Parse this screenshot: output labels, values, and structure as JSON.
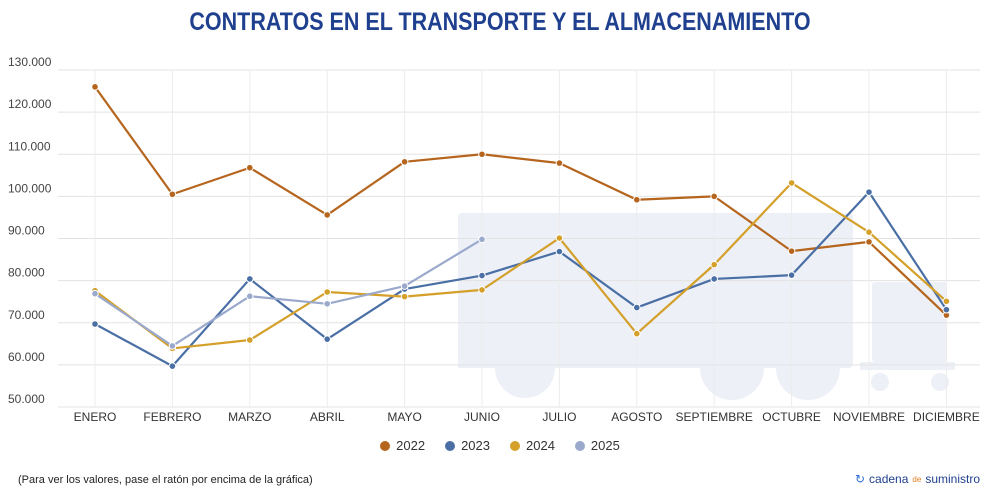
{
  "page": {
    "title": "CONTRATOS EN EL TRANSPORTE Y EL ALMACENAMIENTO",
    "footnote": "(Para ver los valores, pase el ratón por encima de la gráfica)",
    "brand": {
      "icon": "c-swirl-icon",
      "prefix": "cadena",
      "middle": "de",
      "suffix": "suministro"
    }
  },
  "chart_data": {
    "type": "line",
    "title": "CONTRATOS EN EL TRANSPORTE Y EL ALMACENAMIENTO",
    "xlabel": "",
    "ylabel": "",
    "categories": [
      "ENERO",
      "FEBRERO",
      "MARZO",
      "ABRIL",
      "MAYO",
      "JUNIO",
      "JULIO",
      "AGOSTO",
      "SEPTIEMBRE",
      "OCTUBRE",
      "NOVIEMBRE",
      "DICIEMBRE"
    ],
    "ylim": [
      50000,
      130000
    ],
    "yticks": [
      50000,
      60000,
      70000,
      80000,
      90000,
      100000,
      110000,
      120000,
      130000
    ],
    "ytick_labels": [
      "50.000",
      "60.000",
      "70.000",
      "80.000",
      "90.000",
      "100.000",
      "110.000",
      "120.000",
      "130.000"
    ],
    "grid": true,
    "legend_position": "bottom",
    "series": [
      {
        "name": "2022",
        "color": "#b5651d",
        "values": [
          126000,
          100500,
          106800,
          95600,
          108200,
          110000,
          107900,
          99200,
          100000,
          87000,
          89200,
          71800
        ]
      },
      {
        "name": "2023",
        "color": "#4a6fa5",
        "values": [
          69700,
          59700,
          80400,
          66100,
          78000,
          81200,
          86900,
          73600,
          80400,
          81300,
          101000,
          73100
        ]
      },
      {
        "name": "2024",
        "color": "#d4a02a",
        "values": [
          77600,
          63900,
          65900,
          77300,
          76200,
          77800,
          90100,
          67400,
          83800,
          103200,
          91500,
          75100
        ]
      },
      {
        "name": "2025",
        "color": "#9aa9cc",
        "values": [
          76900,
          64500,
          76300,
          74500,
          78700,
          89800,
          null,
          null,
          null,
          null,
          null,
          null
        ]
      }
    ]
  }
}
